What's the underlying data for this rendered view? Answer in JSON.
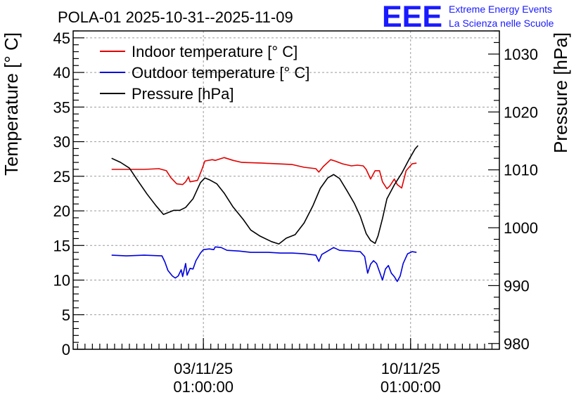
{
  "chart_data": {
    "type": "line",
    "title": "POLA-01 2025-10-31--2025-11-09",
    "logo": {
      "mark": "EEE",
      "line1": "Extreme Energy Events",
      "line2": "La Scienza nelle Scuole",
      "color": "#1a1aff"
    },
    "ylabel_left": "Temperature [° C]",
    "ylabel_right": "Pressure [hPa]",
    "ylim_left": [
      0,
      46
    ],
    "ylim_right": [
      979,
      1034
    ],
    "yticks_left": [
      "0",
      "5",
      "10",
      "15",
      "20",
      "25",
      "30",
      "35",
      "40",
      "45"
    ],
    "yticks_right": [
      "980",
      "990",
      "1000",
      "1010",
      "1020",
      "1030"
    ],
    "xlim": [
      -4.4,
      10.0
    ],
    "xticks": [
      {
        "x": 0.0,
        "date": "03/11/25",
        "time": "01:00:00"
      },
      {
        "x": 7.0,
        "date": "10/11/25",
        "time": "01:00:00"
      }
    ],
    "grid": true,
    "legend_position": "top-left",
    "series": [
      {
        "name": "Indoor temperature [° C]",
        "color": "#e00000",
        "axis": "left",
        "points": [
          [
            -3.1,
            26
          ],
          [
            -2.6,
            26
          ],
          [
            -2.0,
            26
          ],
          [
            -1.5,
            26.1
          ],
          [
            -1.25,
            25.8
          ],
          [
            -1.1,
            24.8
          ],
          [
            -0.9,
            23.9
          ],
          [
            -0.7,
            23.8
          ],
          [
            -0.6,
            24.2
          ],
          [
            -0.5,
            24.9
          ],
          [
            -0.45,
            24.2
          ],
          [
            -0.2,
            24.4
          ],
          [
            -0.05,
            26.0
          ],
          [
            0.05,
            27.2
          ],
          [
            0.3,
            27.4
          ],
          [
            0.4,
            27.3
          ],
          [
            0.7,
            27.7
          ],
          [
            1.0,
            27.3
          ],
          [
            1.3,
            27.0
          ],
          [
            2.0,
            26.9
          ],
          [
            2.5,
            26.8
          ],
          [
            3.0,
            26.7
          ],
          [
            3.4,
            26.3
          ],
          [
            3.6,
            26.2
          ],
          [
            3.8,
            26.1
          ],
          [
            3.9,
            25.6
          ],
          [
            4.05,
            26.4
          ],
          [
            4.3,
            27.4
          ],
          [
            4.45,
            27.2
          ],
          [
            4.7,
            26.8
          ],
          [
            5.0,
            26.5
          ],
          [
            5.2,
            26.6
          ],
          [
            5.4,
            26.5
          ],
          [
            5.5,
            26.0
          ],
          [
            5.65,
            24.6
          ],
          [
            5.8,
            25.8
          ],
          [
            5.95,
            25.8
          ],
          [
            6.05,
            24.2
          ],
          [
            6.2,
            23.2
          ],
          [
            6.3,
            23.6
          ],
          [
            6.45,
            24.6
          ],
          [
            6.55,
            23.8
          ],
          [
            6.7,
            23.3
          ],
          [
            6.85,
            25.8
          ],
          [
            7.05,
            26.8
          ],
          [
            7.2,
            26.9
          ]
        ]
      },
      {
        "name": "Outdoor temperature [° C]",
        "color": "#0000dd",
        "axis": "left",
        "points": [
          [
            -3.1,
            13.6
          ],
          [
            -2.6,
            13.5
          ],
          [
            -2.0,
            13.6
          ],
          [
            -1.4,
            13.5
          ],
          [
            -1.3,
            12.6
          ],
          [
            -1.2,
            11.4
          ],
          [
            -1.05,
            10.6
          ],
          [
            -0.95,
            10.3
          ],
          [
            -0.85,
            10.6
          ],
          [
            -0.75,
            11.5
          ],
          [
            -0.7,
            10.5
          ],
          [
            -0.6,
            12.4
          ],
          [
            -0.55,
            10.7
          ],
          [
            -0.45,
            11.7
          ],
          [
            -0.35,
            11.6
          ],
          [
            -0.25,
            12.8
          ],
          [
            -0.1,
            13.9
          ],
          [
            0.0,
            14.4
          ],
          [
            0.2,
            14.5
          ],
          [
            0.35,
            14.4
          ],
          [
            0.4,
            14.8
          ],
          [
            0.6,
            14.7
          ],
          [
            0.8,
            14.3
          ],
          [
            1.2,
            14.2
          ],
          [
            1.6,
            14.0
          ],
          [
            2.2,
            14.0
          ],
          [
            2.6,
            13.9
          ],
          [
            3.0,
            13.9
          ],
          [
            3.4,
            13.8
          ],
          [
            3.6,
            13.7
          ],
          [
            3.8,
            13.6
          ],
          [
            3.9,
            12.7
          ],
          [
            4.0,
            13.7
          ],
          [
            4.2,
            14.2
          ],
          [
            4.4,
            14.7
          ],
          [
            4.6,
            14.3
          ],
          [
            5.0,
            14.2
          ],
          [
            5.3,
            14.1
          ],
          [
            5.45,
            13.4
          ],
          [
            5.55,
            11.0
          ],
          [
            5.65,
            12.3
          ],
          [
            5.75,
            12.8
          ],
          [
            5.85,
            12.4
          ],
          [
            5.95,
            11.2
          ],
          [
            6.05,
            10.0
          ],
          [
            6.15,
            11.6
          ],
          [
            6.25,
            12.1
          ],
          [
            6.35,
            11.0
          ],
          [
            6.45,
            10.5
          ],
          [
            6.55,
            9.8
          ],
          [
            6.65,
            10.6
          ],
          [
            6.75,
            12.4
          ],
          [
            6.9,
            13.8
          ],
          [
            7.05,
            14.1
          ],
          [
            7.2,
            14.0
          ]
        ]
      },
      {
        "name": "Pressure [hPa]",
        "color": "#000000",
        "axis": "right",
        "points": [
          [
            -3.1,
            1012.0
          ],
          [
            -2.8,
            1011.3
          ],
          [
            -2.5,
            1010.3
          ],
          [
            -2.2,
            1008.0
          ],
          [
            -1.9,
            1005.8
          ],
          [
            -1.6,
            1003.8
          ],
          [
            -1.35,
            1002.3
          ],
          [
            -1.2,
            1002.6
          ],
          [
            -1.0,
            1003.0
          ],
          [
            -0.8,
            1003.0
          ],
          [
            -0.6,
            1003.5
          ],
          [
            -0.35,
            1005.0
          ],
          [
            -0.1,
            1007.8
          ],
          [
            0.05,
            1008.6
          ],
          [
            0.2,
            1008.3
          ],
          [
            0.45,
            1007.6
          ],
          [
            0.7,
            1006.0
          ],
          [
            1.0,
            1003.6
          ],
          [
            1.35,
            1001.4
          ],
          [
            1.6,
            999.6
          ],
          [
            1.9,
            998.6
          ],
          [
            2.3,
            997.6
          ],
          [
            2.55,
            997.2
          ],
          [
            2.8,
            998.2
          ],
          [
            3.1,
            998.8
          ],
          [
            3.4,
            1000.8
          ],
          [
            3.7,
            1003.8
          ],
          [
            3.95,
            1006.8
          ],
          [
            4.2,
            1008.6
          ],
          [
            4.4,
            1009.2
          ],
          [
            4.6,
            1008.5
          ],
          [
            4.85,
            1006.4
          ],
          [
            5.1,
            1004.2
          ],
          [
            5.3,
            1002.0
          ],
          [
            5.5,
            999.0
          ],
          [
            5.65,
            997.8
          ],
          [
            5.8,
            997.3
          ],
          [
            5.9,
            998.6
          ],
          [
            6.05,
            1001.6
          ],
          [
            6.2,
            1005.0
          ],
          [
            6.45,
            1007.4
          ],
          [
            6.7,
            1009.4
          ],
          [
            6.95,
            1011.8
          ],
          [
            7.15,
            1013.6
          ],
          [
            7.25,
            1014.2
          ]
        ]
      }
    ]
  }
}
